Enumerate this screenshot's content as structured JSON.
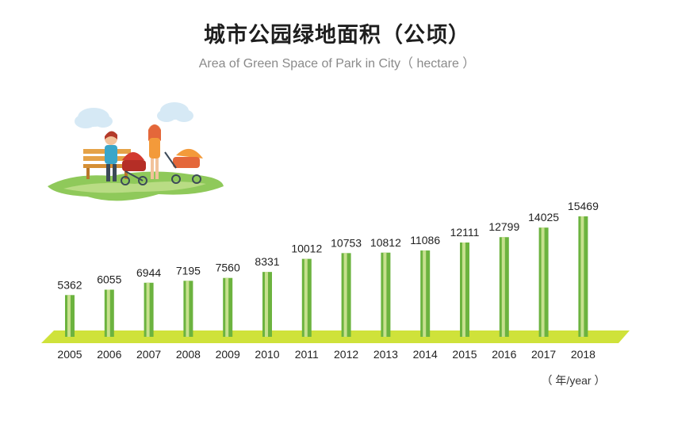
{
  "title": "城市公园绿地面积（公顷）",
  "subtitle": "Area of Green Space of Park in City（ hectare ）",
  "unit_label": "（ 年/year ）",
  "chart_data": {
    "type": "bar",
    "categories": [
      "2005",
      "2006",
      "2007",
      "2008",
      "2009",
      "2010",
      "2011",
      "2012",
      "2013",
      "2014",
      "2015",
      "2016",
      "2017",
      "2018"
    ],
    "values": [
      5362,
      6055,
      6944,
      7195,
      7560,
      8331,
      10012,
      10753,
      10812,
      11086,
      12111,
      12799,
      14025,
      15469
    ],
    "title": "城市公园绿地面积（公顷）",
    "subtitle": "Area of Green Space of Park in City（ hectare ）",
    "xlabel": "（ 年/year ）",
    "ylabel": "",
    "grid": false,
    "legend": "none",
    "colors": {
      "bar": "#6cb33f",
      "bar_light": "#c7e08e",
      "base_band": "#cfe23a"
    }
  }
}
